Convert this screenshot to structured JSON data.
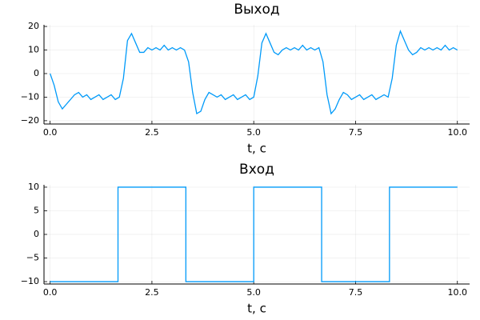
{
  "chart_data": [
    {
      "type": "line",
      "title": "Выход",
      "xlabel": "t, с",
      "x": [
        0,
        0.1,
        0.2,
        0.3,
        0.4,
        0.5,
        0.6,
        0.7,
        0.8,
        0.9,
        1,
        1.1,
        1.2,
        1.3,
        1.4,
        1.5,
        1.6,
        1.7,
        1.8,
        1.9,
        2,
        2.1,
        2.2,
        2.3,
        2.4,
        2.5,
        2.6,
        2.7,
        2.8,
        2.9,
        3,
        3.1,
        3.2,
        3.3,
        3.4,
        3.5,
        3.6,
        3.7,
        3.8,
        3.9,
        4,
        4.1,
        4.2,
        4.3,
        4.4,
        4.5,
        4.6,
        4.7,
        4.8,
        4.9,
        5,
        5.1,
        5.2,
        5.3,
        5.4,
        5.5,
        5.6,
        5.7,
        5.8,
        5.9,
        6,
        6.1,
        6.2,
        6.3,
        6.4,
        6.5,
        6.6,
        6.7,
        6.8,
        6.9,
        7,
        7.1,
        7.2,
        7.3,
        7.4,
        7.5,
        7.6,
        7.7,
        7.8,
        7.9,
        8,
        8.1,
        8.2,
        8.3,
        8.4,
        8.5,
        8.6,
        8.7,
        8.8,
        8.9,
        9,
        9.1,
        9.2,
        9.3,
        9.4,
        9.5,
        9.6,
        9.7,
        9.8,
        9.9,
        10
      ],
      "series": [
        {
          "color": "#009af9",
          "values": [
            0,
            -5,
            -12,
            -15,
            -13,
            -11,
            -9,
            -8,
            -10,
            -9,
            -11,
            -10,
            -9,
            -11,
            -10,
            -9,
            -11,
            -10,
            -2,
            14,
            17,
            13,
            9,
            9,
            11,
            10,
            11,
            10,
            12,
            10,
            11,
            10,
            11,
            10,
            5,
            -8,
            -17,
            -16,
            -11,
            -8,
            -9,
            -10,
            -9,
            -11,
            -10,
            -9,
            -11,
            -10,
            -9,
            -11,
            -10,
            -1,
            13,
            17,
            13,
            9,
            8,
            10,
            11,
            10,
            11,
            10,
            12,
            10,
            11,
            10,
            11,
            5,
            -9,
            -17,
            -15,
            -11,
            -8,
            -9,
            -11,
            -10,
            -9,
            -11,
            -10,
            -9,
            -11,
            -10,
            -9,
            -10,
            -2,
            12,
            18,
            14,
            10,
            8,
            9,
            11,
            10,
            11,
            10,
            11,
            10,
            12,
            10,
            11,
            10
          ]
        }
      ],
      "xlim": [
        -0.15,
        10.3
      ],
      "ylim": [
        -21.4,
        20.7
      ],
      "xticks": [
        {
          "value": 0,
          "label": "0.0"
        },
        {
          "value": 2.5,
          "label": "2.5"
        },
        {
          "value": 5,
          "label": "5.0"
        },
        {
          "value": 7.5,
          "label": "7.5"
        },
        {
          "value": 10,
          "label": "10.0"
        }
      ],
      "yticks": [
        {
          "value": -20,
          "label": "−20"
        },
        {
          "value": -10,
          "label": "−10"
        },
        0,
        10,
        20
      ],
      "grid": true
    },
    {
      "type": "line",
      "title": "Вход",
      "xlabel": "t, с",
      "x": [
        0,
        1.667,
        1.667,
        3.333,
        3.333,
        5,
        5,
        6.667,
        6.667,
        8.333,
        8.333,
        10
      ],
      "series": [
        {
          "color": "#009af9",
          "values": [
            -10,
            -10,
            10,
            10,
            -10,
            -10,
            10,
            10,
            -10,
            -10,
            10,
            10
          ]
        }
      ],
      "xlim": [
        -0.15,
        10.3
      ],
      "ylim": [
        -10.5,
        10.5
      ],
      "xticks": [
        {
          "value": 0,
          "label": "0.0"
        },
        {
          "value": 2.5,
          "label": "2.5"
        },
        {
          "value": 5,
          "label": "5.0"
        },
        {
          "value": 7.5,
          "label": "7.5"
        },
        {
          "value": 10,
          "label": "10.0"
        }
      ],
      "yticks": [
        {
          "value": -10,
          "label": "−10"
        },
        {
          "value": -5,
          "label": "−5"
        },
        0,
        5,
        10
      ],
      "grid": true
    }
  ]
}
